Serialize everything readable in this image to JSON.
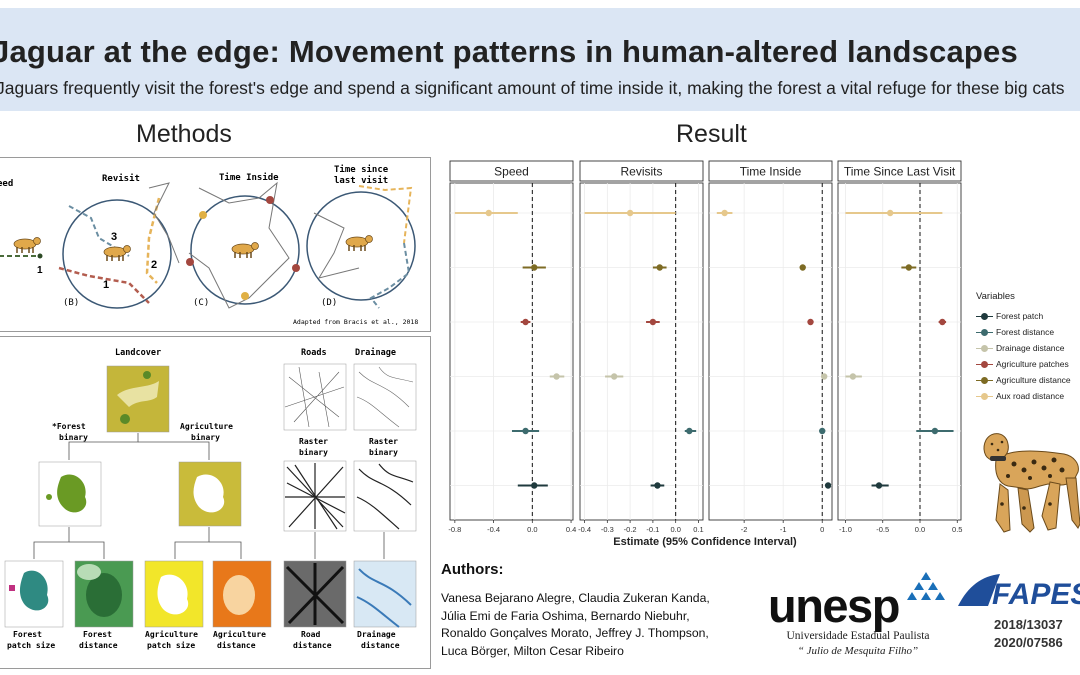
{
  "header": {
    "title": "Jaguar at the edge: Movement patterns in human-altered landscapes",
    "subtitle": "Jaguars frequently visit the forest's edge and spend a significant amount of time inside it, making the forest a vital refuge for these big cats"
  },
  "methods": {
    "heading": "Methods",
    "metrics_panel": {
      "labels": [
        "Speed",
        "Revisit",
        "Time Inside",
        "Time since",
        "last visit"
      ],
      "panel_letters": [
        "(B)",
        "(C)",
        "(D)"
      ],
      "path_numbers": [
        "1",
        "1",
        "2",
        "3"
      ],
      "credit": "Adapted from Bracis et al., 2018"
    },
    "landscape_panel": {
      "landcover": "Landcover",
      "forest_binary": [
        "*Forest",
        "binary"
      ],
      "agriculture_binary": [
        "Agriculture",
        "binary"
      ],
      "roads": "Roads",
      "drainage": "Drainage",
      "raster_binary_1": [
        "Raster",
        "binary"
      ],
      "raster_binary_2": [
        "Raster",
        "binary"
      ],
      "bottom_labels": [
        [
          "Forest",
          "patch size"
        ],
        [
          "Forest",
          "distance"
        ],
        [
          "Agriculture",
          "patch size"
        ],
        [
          "Agriculture",
          "distance"
        ],
        [
          "Road",
          "distance"
        ],
        [
          "Drainage",
          "distance"
        ]
      ]
    }
  },
  "result": {
    "heading": "Result"
  },
  "chart_data": {
    "type": "scatter",
    "subtype": "coefficient forest plot with error bars",
    "xlabel": "Estimate (95% Confidence Interval)",
    "legend": {
      "title": "Variables",
      "placement": "right",
      "entries": [
        {
          "name": "Forest patch",
          "color": "#1f3a3d"
        },
        {
          "name": "Forest distance",
          "color": "#3d6b6e"
        },
        {
          "name": "Drainage distance",
          "color": "#c5c4aa"
        },
        {
          "name": "Agriculture patches",
          "color": "#a3473f"
        },
        {
          "name": "Agriculture distance",
          "color": "#7d6b24"
        },
        {
          "name": "Aux road distance",
          "color": "#e6c88c"
        }
      ]
    },
    "row_order_top_to_bottom": [
      "Aux road distance",
      "Agriculture distance",
      "Agriculture patches",
      "Drainage distance",
      "Forest distance",
      "Forest patch"
    ],
    "facets": [
      {
        "title": "Speed",
        "xlim": [
          -0.85,
          0.42
        ],
        "ticks": [
          -0.8,
          -0.4,
          0.0,
          0.4
        ],
        "tick_labels": [
          "-0.8",
          "-0.4",
          "0.0",
          "0.4"
        ],
        "points": [
          {
            "variable": "Aux road distance",
            "estimate": -0.45,
            "lower": -0.8,
            "upper": -0.15
          },
          {
            "variable": "Agriculture distance",
            "estimate": 0.02,
            "lower": -0.1,
            "upper": 0.14
          },
          {
            "variable": "Agriculture patches",
            "estimate": -0.07,
            "lower": -0.12,
            "upper": -0.02
          },
          {
            "variable": "Drainage distance",
            "estimate": 0.25,
            "lower": 0.18,
            "upper": 0.33
          },
          {
            "variable": "Forest distance",
            "estimate": -0.07,
            "lower": -0.21,
            "upper": 0.07
          },
          {
            "variable": "Forest patch",
            "estimate": 0.02,
            "lower": -0.15,
            "upper": 0.16
          }
        ]
      },
      {
        "title": "Revisits",
        "xlim": [
          -0.42,
          0.12
        ],
        "ticks": [
          -0.4,
          -0.3,
          -0.2,
          -0.1,
          0.0,
          0.1
        ],
        "tick_labels": [
          "-0.4",
          "-0.3",
          "-0.2",
          "-0.1",
          "0.0",
          "0.1"
        ],
        "points": [
          {
            "variable": "Aux road distance",
            "estimate": -0.2,
            "lower": -0.4,
            "upper": 0.0
          },
          {
            "variable": "Agriculture distance",
            "estimate": -0.07,
            "lower": -0.1,
            "upper": -0.04
          },
          {
            "variable": "Agriculture patches",
            "estimate": -0.1,
            "lower": -0.13,
            "upper": -0.07
          },
          {
            "variable": "Drainage distance",
            "estimate": -0.27,
            "lower": -0.31,
            "upper": -0.23
          },
          {
            "variable": "Forest distance",
            "estimate": 0.06,
            "lower": 0.04,
            "upper": 0.09
          },
          {
            "variable": "Forest patch",
            "estimate": -0.08,
            "lower": -0.11,
            "upper": -0.05
          }
        ]
      },
      {
        "title": "Time Inside",
        "xlim": [
          -2.9,
          0.25
        ],
        "ticks": [
          -2,
          -1,
          0
        ],
        "tick_labels": [
          "-2",
          "-1",
          "0"
        ],
        "points": [
          {
            "variable": "Aux road distance",
            "estimate": -2.5,
            "lower": -2.7,
            "upper": -2.3
          },
          {
            "variable": "Agriculture distance",
            "estimate": -0.5,
            "lower": -0.55,
            "upper": -0.45
          },
          {
            "variable": "Agriculture patches",
            "estimate": -0.3,
            "lower": -0.35,
            "upper": -0.25
          },
          {
            "variable": "Drainage distance",
            "estimate": 0.05,
            "lower": 0.0,
            "upper": 0.1
          },
          {
            "variable": "Forest distance",
            "estimate": 0.0,
            "lower": -0.05,
            "upper": 0.05
          },
          {
            "variable": "Forest patch",
            "estimate": 0.15,
            "lower": 0.1,
            "upper": 0.2
          }
        ]
      },
      {
        "title": "Time Since Last Visit",
        "xlim": [
          -1.1,
          0.55
        ],
        "ticks": [
          -1.0,
          -0.5,
          0.0,
          0.5
        ],
        "tick_labels": [
          "-1.0",
          "-0.5",
          "0.0",
          "0.5"
        ],
        "points": [
          {
            "variable": "Aux road distance",
            "estimate": -0.4,
            "lower": -1.0,
            "upper": 0.3
          },
          {
            "variable": "Agriculture distance",
            "estimate": -0.15,
            "lower": -0.25,
            "upper": -0.05
          },
          {
            "variable": "Agriculture patches",
            "estimate": 0.3,
            "lower": 0.25,
            "upper": 0.35
          },
          {
            "variable": "Drainage distance",
            "estimate": -0.9,
            "lower": -1.0,
            "upper": -0.78
          },
          {
            "variable": "Forest distance",
            "estimate": 0.2,
            "lower": -0.05,
            "upper": 0.45
          },
          {
            "variable": "Forest patch",
            "estimate": -0.55,
            "lower": -0.65,
            "upper": -0.42
          }
        ]
      }
    ]
  },
  "authors": {
    "heading": "Authors:",
    "lines": [
      "Vanesa Bejarano Alegre, Claudia Zukeran Kanda,",
      "Júlia Emi de Faria Oshima, Bernardo Niebuhr,",
      "Ronaldo Gonçalves Morato, Jeffrey J. Thompson,",
      "Luca Börger, Milton Cesar Ribeiro"
    ]
  },
  "logos": {
    "unesp": "unesp",
    "unesp_line1": "Universidade Estadual Paulista",
    "unesp_line2": "“ Julio de Mesquita Filho”",
    "fapesp": "FAPESP",
    "grants": [
      "2018/13037",
      "2020/07586"
    ]
  }
}
